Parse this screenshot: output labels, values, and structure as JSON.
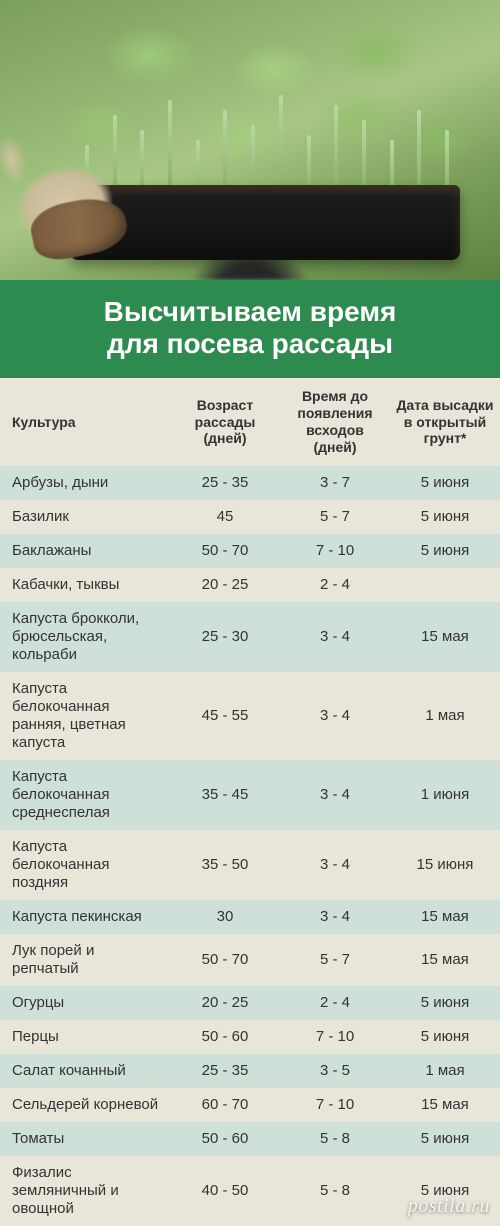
{
  "banner": {
    "title_line1": "Высчитываем время",
    "title_line2": "для посева рассады"
  },
  "colors": {
    "banner_bg": "#2e8b4f",
    "banner_text": "#ffffff",
    "header_bg": "#e8e6d9",
    "row_even": "#cfe0d8",
    "row_odd": "#e8e6d9",
    "text": "#333333"
  },
  "table": {
    "columns": [
      "Культура",
      "Возраст рассады (дней)",
      "Время до появления всходов (дней)",
      "Дата высадки в открытый грунт*"
    ],
    "col_widths": [
      "34%",
      "22%",
      "22%",
      "22%"
    ],
    "rows": [
      [
        "Арбузы, дыни",
        "25 - 35",
        "3 - 7",
        "5 июня"
      ],
      [
        "Базилик",
        "45",
        "5 - 7",
        "5 июня"
      ],
      [
        "Баклажаны",
        "50 - 70",
        "7 - 10",
        "5 июня"
      ],
      [
        "Кабачки, тыквы",
        "20 - 25",
        "2 - 4",
        ""
      ],
      [
        "Капуста брокколи, брюсельская, кольраби",
        "25 - 30",
        "3 - 4",
        "15 мая"
      ],
      [
        "Капуста белокочанная ранняя, цветная капуста",
        "45 - 55",
        "3 - 4",
        "1 мая"
      ],
      [
        "Капуста белокочанная среднеспелая",
        "35 - 45",
        "3 - 4",
        "1 июня"
      ],
      [
        "Капуста белокочанная поздняя",
        "35 - 50",
        "3 - 4",
        "15 июня"
      ],
      [
        "Капуста пекинская",
        "30",
        "3 - 4",
        "15 мая"
      ],
      [
        "Лук порей и репчатый",
        "50 - 70",
        "5 - 7",
        "15 мая"
      ],
      [
        "Огурцы",
        "20 - 25",
        "2 - 4",
        "5 июня"
      ],
      [
        "Перцы",
        "50 - 60",
        "7 - 10",
        "5 июня"
      ],
      [
        "Салат кочанный",
        "25 - 35",
        "3 - 5",
        "1 мая"
      ],
      [
        "Сельдерей корневой",
        "60 - 70",
        "7 - 10",
        "15 мая"
      ],
      [
        "Томаты",
        "50 - 60",
        "5 - 8",
        "5 июня"
      ],
      [
        "Физалис земляничный и овощной",
        "40 - 50",
        "5 - 8",
        "5 июня"
      ]
    ]
  },
  "watermark": "postila.ru",
  "hero": {
    "stem_heights": [
      65,
      95,
      80,
      110,
      70,
      100,
      85,
      115,
      75,
      105,
      90,
      70,
      100,
      80
    ]
  }
}
